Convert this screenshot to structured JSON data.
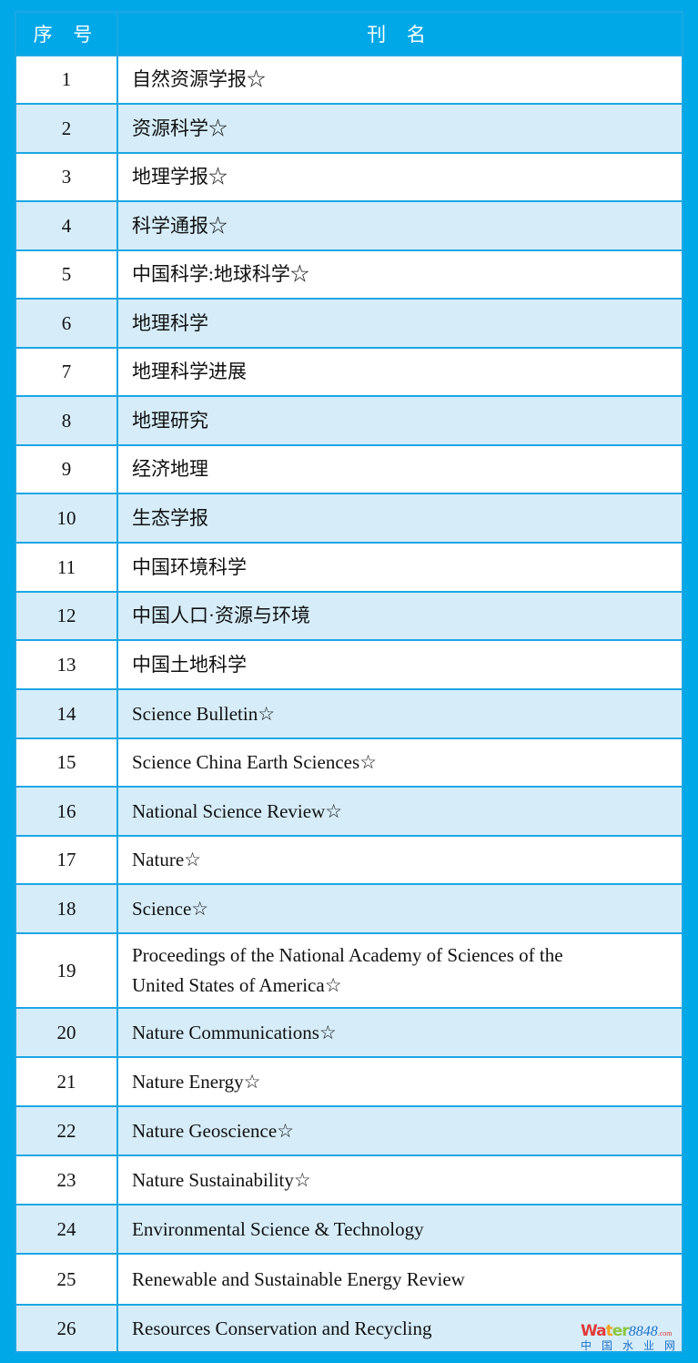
{
  "header": {
    "col_number": "序 号",
    "col_name": "刊 名"
  },
  "rows": [
    {
      "n": "1",
      "name": "自然资源学报☆"
    },
    {
      "n": "2",
      "name": "资源科学☆"
    },
    {
      "n": "3",
      "name": "地理学报☆"
    },
    {
      "n": "4",
      "name": "科学通报☆"
    },
    {
      "n": "5",
      "name": "中国科学:地球科学☆"
    },
    {
      "n": "6",
      "name": "地理科学"
    },
    {
      "n": "7",
      "name": "地理科学进展"
    },
    {
      "n": "8",
      "name": "地理研究"
    },
    {
      "n": "9",
      "name": "经济地理"
    },
    {
      "n": "10",
      "name": "生态学报"
    },
    {
      "n": "11",
      "name": "中国环境科学"
    },
    {
      "n": "12",
      "name": "中国人口·资源与环境"
    },
    {
      "n": "13",
      "name": "中国土地科学"
    },
    {
      "n": "14",
      "name": "Science Bulletin☆"
    },
    {
      "n": "15",
      "name": "Science China Earth Sciences☆"
    },
    {
      "n": "16",
      "name": "National Science Review☆"
    },
    {
      "n": "17",
      "name": "Nature☆"
    },
    {
      "n": "18",
      "name": "Science☆"
    },
    {
      "n": "19",
      "name": "Proceedings of the National Academy of Sciences of the United States of America☆"
    },
    {
      "n": "20",
      "name": "Nature Communications☆"
    },
    {
      "n": "21",
      "name": "Nature Energy☆"
    },
    {
      "n": "22",
      "name": "Nature Geoscience☆"
    },
    {
      "n": "23",
      "name": "Nature Sustainability☆"
    },
    {
      "n": "24",
      "name": "Environmental Science & Technology"
    },
    {
      "n": "25",
      "name": "Renewable and Sustainable Energy Review"
    },
    {
      "n": "26",
      "name": "Resources Conservation and Recycling"
    }
  ],
  "watermark": {
    "brand_a": "Wa",
    "brand_b": "t",
    "brand_c": "er",
    "brand_num": "8848",
    "brand_tld": ".com",
    "brand_cn": "中国水业网"
  },
  "colors": {
    "frame": "#00a8e8",
    "row_alt": "#d6edf9",
    "border": "#1ca7e4"
  }
}
